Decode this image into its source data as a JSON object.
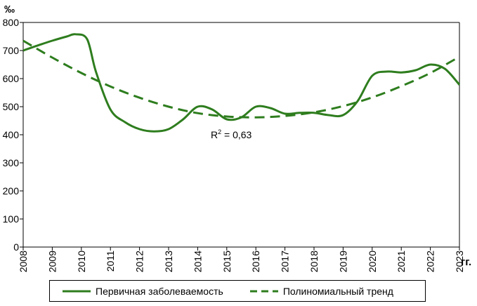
{
  "chart_data": {
    "type": "line",
    "y_unit": "‰",
    "x_unit": "гг.",
    "categories": [
      "2008",
      "2009",
      "2010",
      "2011",
      "2012",
      "2013",
      "2014",
      "2015",
      "2016",
      "2017",
      "2018",
      "2019",
      "2020",
      "2021",
      "2022",
      "2023"
    ],
    "ylim": [
      0,
      800
    ],
    "yticks": [
      "0",
      "100",
      "200",
      "300",
      "400",
      "500",
      "600",
      "700",
      "800"
    ],
    "grid": false,
    "legend_position": "bottom",
    "annotation": "R² = 0,63",
    "series": [
      {
        "name": "Первичная заболеваемость",
        "style": "solid",
        "color": "#2e7d1e",
        "x": [
          2008,
          2008.5,
          2009,
          2009.5,
          2009.8,
          2010.2,
          2010.5,
          2011,
          2011.5,
          2012,
          2012.5,
          2013,
          2013.5,
          2014,
          2014.5,
          2015,
          2015.5,
          2016,
          2016.5,
          2017,
          2017.5,
          2018,
          2018.5,
          2019,
          2019.5,
          2020,
          2020.5,
          2021,
          2021.5,
          2022,
          2022.5,
          2023
        ],
        "values": [
          700,
          718,
          735,
          750,
          758,
          740,
          625,
          490,
          445,
          420,
          412,
          420,
          455,
          500,
          490,
          455,
          462,
          500,
          495,
          475,
          478,
          478,
          470,
          470,
          520,
          610,
          625,
          622,
          630,
          650,
          635,
          578
        ]
      },
      {
        "name": "Полиномиальный тренд",
        "style": "dashed",
        "color": "#2e7d1e",
        "x": [
          2008,
          2009,
          2010,
          2011,
          2012,
          2013,
          2014,
          2015,
          2016,
          2017,
          2018,
          2019,
          2020,
          2021,
          2022,
          2023
        ],
        "values": [
          735,
          675,
          620,
          572,
          532,
          500,
          477,
          465,
          462,
          467,
          480,
          502,
          533,
          573,
          620,
          678
        ]
      }
    ]
  }
}
